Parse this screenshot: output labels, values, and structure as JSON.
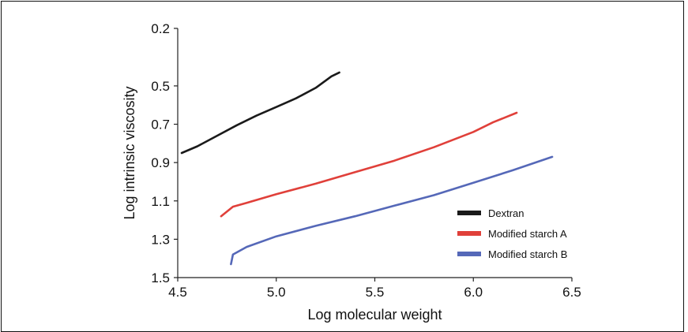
{
  "chart_data": {
    "type": "line",
    "title": "",
    "xlabel": "Log molecular weight",
    "ylabel": "Log intrinsic viscosity",
    "xlim": [
      4.5,
      6.5
    ],
    "ylim": [
      0.2,
      1.5
    ],
    "y_inverted": true,
    "x_ticks": [
      "4.5",
      "5.0",
      "5.5",
      "6.0",
      "6.5"
    ],
    "y_ticks": [
      "0.2",
      "0.5",
      "0.7",
      "0.9",
      "1.1",
      "1.3",
      "1.5"
    ],
    "grid": false,
    "legend_position": "bottom-right",
    "series": [
      {
        "name": "Dextran",
        "color": "#1a1a1a",
        "points": [
          [
            4.52,
            0.85
          ],
          [
            4.6,
            0.815
          ],
          [
            4.7,
            0.76
          ],
          [
            4.8,
            0.705
          ],
          [
            4.9,
            0.655
          ],
          [
            5.0,
            0.61
          ],
          [
            5.1,
            0.565
          ],
          [
            5.2,
            0.51
          ],
          [
            5.28,
            0.45
          ],
          [
            5.32,
            0.43
          ]
        ]
      },
      {
        "name": "Modified starch A",
        "color": "#e0403a",
        "points": [
          [
            4.72,
            1.18
          ],
          [
            4.78,
            1.13
          ],
          [
            4.85,
            1.11
          ],
          [
            5.0,
            1.065
          ],
          [
            5.2,
            1.01
          ],
          [
            5.4,
            0.95
          ],
          [
            5.6,
            0.89
          ],
          [
            5.8,
            0.82
          ],
          [
            6.0,
            0.74
          ],
          [
            6.1,
            0.69
          ],
          [
            6.22,
            0.64
          ]
        ]
      },
      {
        "name": "Modified starch B",
        "color": "#5568b8",
        "points": [
          [
            4.77,
            1.43
          ],
          [
            4.78,
            1.38
          ],
          [
            4.85,
            1.34
          ],
          [
            5.0,
            1.285
          ],
          [
            5.2,
            1.23
          ],
          [
            5.4,
            1.18
          ],
          [
            5.6,
            1.125
          ],
          [
            5.8,
            1.07
          ],
          [
            6.0,
            1.005
          ],
          [
            6.2,
            0.94
          ],
          [
            6.4,
            0.87
          ]
        ]
      }
    ]
  }
}
